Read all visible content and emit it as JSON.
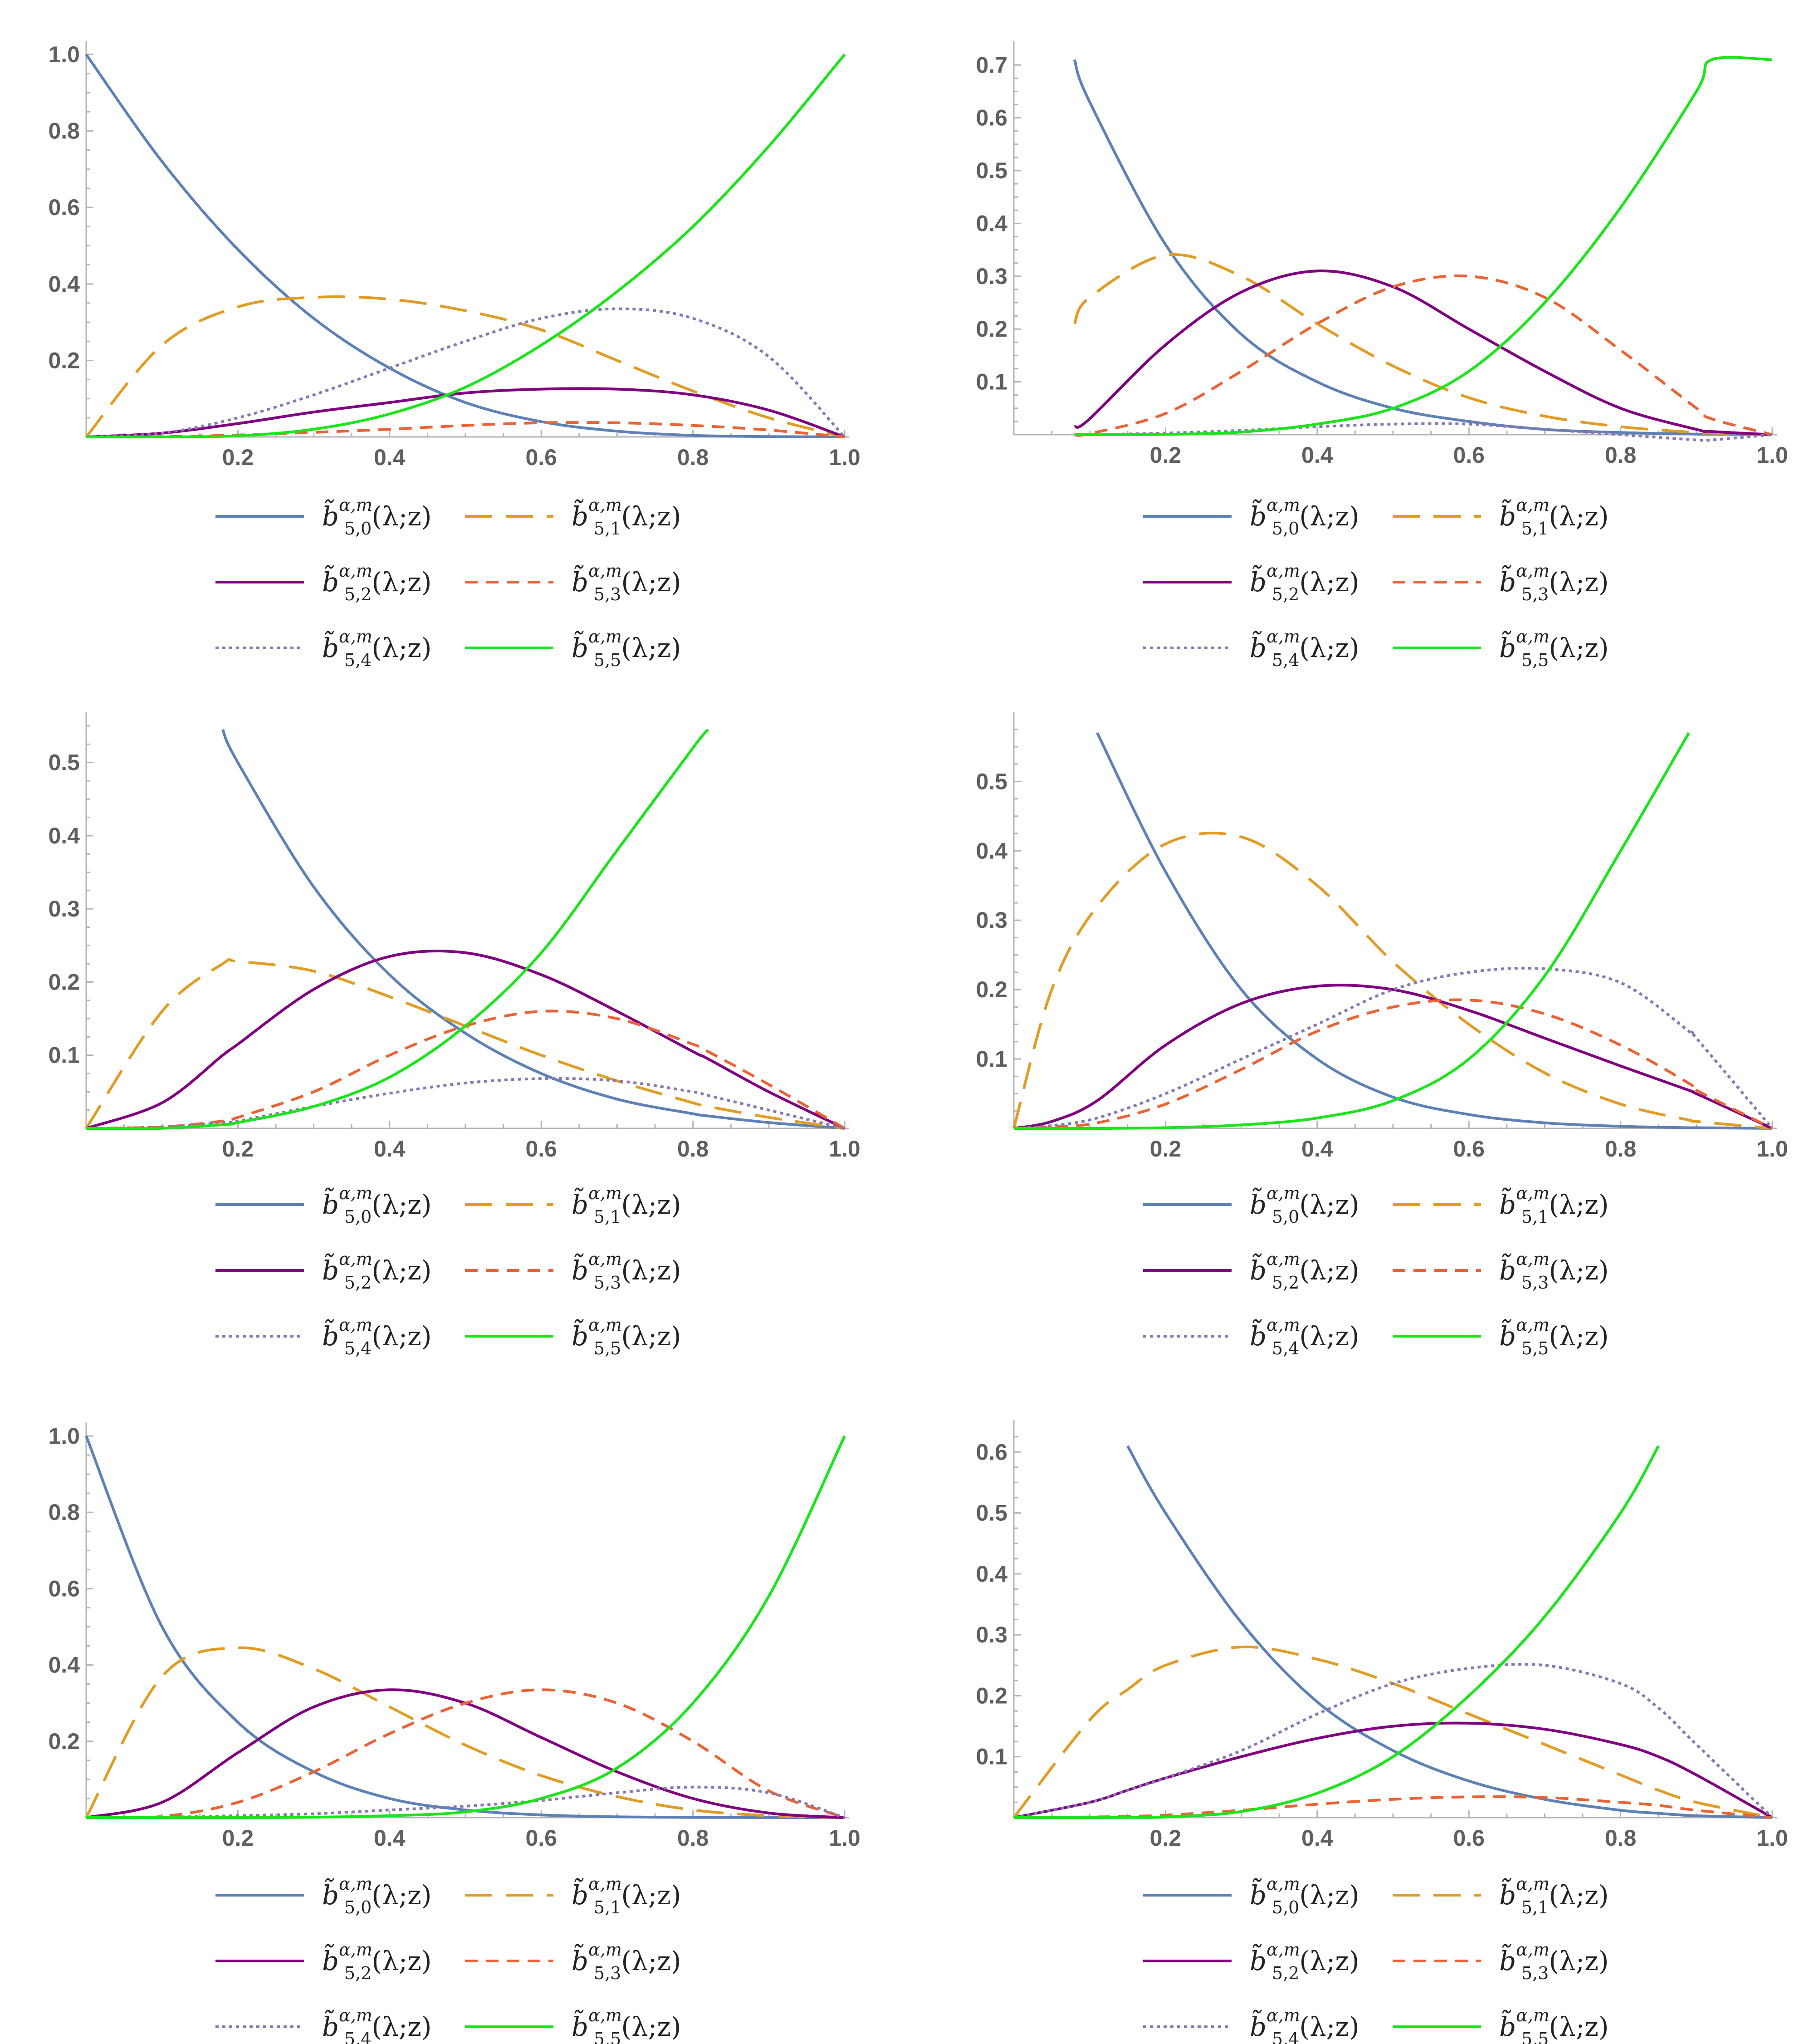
{
  "figure": {
    "panel_count": 6
  },
  "legend": [
    {
      "key": "b50",
      "label_base": "b̃",
      "sub": "5,0",
      "sup": "α,m",
      "args": "(λ;z)",
      "color": "#5e81b5",
      "dash": "solid"
    },
    {
      "key": "b51",
      "label_base": "b̃",
      "sub": "5,1",
      "sup": "α,m",
      "args": "(λ;z)",
      "color": "#e19c24",
      "dash": "long"
    },
    {
      "key": "b52",
      "label_base": "b̃",
      "sub": "5,2",
      "sup": "α,m",
      "args": "(λ;z)",
      "color": "#800080",
      "dash": "solid"
    },
    {
      "key": "b53",
      "label_base": "b̃",
      "sub": "5,3",
      "sup": "α,m",
      "args": "(λ;z)",
      "color": "#eb6235",
      "dash": "medium"
    },
    {
      "key": "b54",
      "label_base": "b̃",
      "sub": "5,4",
      "sup": "α,m",
      "args": "(λ;z)",
      "color": "#8778b3",
      "dash": "dotted"
    },
    {
      "key": "b55",
      "label_base": "b̃",
      "sub": "5,5",
      "sup": "α,m",
      "args": "(λ;z)",
      "color": "#1ae51a",
      "dash": "solid"
    }
  ],
  "chart_data": [
    {
      "type": "line",
      "xlim": [
        0,
        1
      ],
      "ylim": [
        0,
        1.0
      ],
      "xticks": [
        "0.2",
        "0.4",
        "0.6",
        "0.8",
        "1.0"
      ],
      "yticks": [
        "0.2",
        "0.4",
        "0.6",
        "0.8",
        "1.0"
      ],
      "x": [
        0,
        0.1,
        0.2,
        0.3,
        0.4,
        0.5,
        0.6,
        0.7,
        0.8,
        0.9,
        1.0
      ],
      "series": [
        {
          "name": "b50",
          "values": [
            1.0,
            0.72,
            0.49,
            0.31,
            0.18,
            0.09,
            0.04,
            0.015,
            0.004,
            0.001,
            0
          ]
        },
        {
          "name": "b51",
          "values": [
            0,
            0.24,
            0.34,
            0.365,
            0.36,
            0.33,
            0.28,
            0.2,
            0.12,
            0.05,
            0
          ]
        },
        {
          "name": "b52",
          "values": [
            0,
            0.01,
            0.035,
            0.065,
            0.09,
            0.115,
            0.125,
            0.125,
            0.11,
            0.07,
            0
          ]
        },
        {
          "name": "b53",
          "values": [
            0,
            0.001,
            0.005,
            0.012,
            0.02,
            0.03,
            0.037,
            0.037,
            0.03,
            0.018,
            0
          ]
        },
        {
          "name": "b54",
          "values": [
            0,
            0.01,
            0.05,
            0.11,
            0.18,
            0.25,
            0.31,
            0.335,
            0.31,
            0.21,
            0
          ]
        },
        {
          "name": "b55",
          "values": [
            0,
            0.0001,
            0.003,
            0.02,
            0.06,
            0.13,
            0.24,
            0.38,
            0.55,
            0.76,
            1.0
          ]
        }
      ]
    },
    {
      "type": "line",
      "xlim": [
        0,
        1
      ],
      "ylim": [
        0,
        0.72
      ],
      "xticks": [
        "0.2",
        "0.4",
        "0.6",
        "0.8",
        "1.0"
      ],
      "yticks": [
        "0.1",
        "0.2",
        "0.3",
        "0.4",
        "0.5",
        "0.6",
        "0.7"
      ],
      "x": [
        0.08,
        0.1,
        0.2,
        0.3,
        0.4,
        0.5,
        0.6,
        0.7,
        0.8,
        0.9,
        0.92,
        1.0
      ],
      "series": [
        {
          "name": "b50",
          "values": [
            0.71,
            0.63,
            0.36,
            0.19,
            0.1,
            0.05,
            0.025,
            0.01,
            0.004,
            0.001,
            0.0008,
            0
          ]
        },
        {
          "name": "b51",
          "values": [
            0.21,
            0.26,
            0.34,
            0.3,
            0.21,
            0.13,
            0.07,
            0.035,
            0.015,
            0.004,
            0.003,
            0
          ]
        },
        {
          "name": "b52",
          "values": [
            0.015,
            0.03,
            0.17,
            0.27,
            0.31,
            0.28,
            0.2,
            0.12,
            0.05,
            0.01,
            0.006,
            0
          ]
        },
        {
          "name": "b53",
          "values": [
            0.0,
            0.002,
            0.04,
            0.12,
            0.21,
            0.28,
            0.3,
            0.26,
            0.16,
            0.05,
            0.03,
            0
          ]
        },
        {
          "name": "b54",
          "values": [
            0.0,
            0.0,
            0.003,
            0.008,
            0.015,
            0.02,
            0.02,
            0.01,
            0.0,
            -0.01,
            -0.01,
            0
          ]
        },
        {
          "name": "b55",
          "values": [
            0.0,
            0.0,
            0.0005,
            0.005,
            0.02,
            0.05,
            0.12,
            0.25,
            0.43,
            0.65,
            0.71,
            0.71
          ]
        }
      ]
    },
    {
      "type": "line",
      "xlim": [
        0,
        1
      ],
      "ylim": [
        0,
        0.55
      ],
      "xticks": [
        "0.2",
        "0.4",
        "0.6",
        "0.8",
        "1.0"
      ],
      "yticks": [
        "0.1",
        "0.2",
        "0.3",
        "0.4",
        "0.5"
      ],
      "x": [
        0,
        0.1,
        0.18,
        0.2,
        0.3,
        0.4,
        0.5,
        0.6,
        0.7,
        0.8,
        0.82,
        0.9,
        1.0
      ],
      "series": [
        {
          "name": "b50",
          "values": [
            null,
            null,
            0.545,
            0.5,
            0.33,
            0.21,
            0.13,
            0.075,
            0.04,
            0.02,
            0.017,
            0.008,
            0
          ]
        },
        {
          "name": "b51",
          "values": [
            0,
            0.16,
            0.225,
            0.228,
            0.215,
            0.18,
            0.14,
            0.1,
            0.065,
            0.035,
            0.03,
            0.015,
            0
          ]
        },
        {
          "name": "b52",
          "values": [
            0,
            0.035,
            0.1,
            0.115,
            0.19,
            0.235,
            0.24,
            0.21,
            0.16,
            0.105,
            0.095,
            0.05,
            0
          ]
        },
        {
          "name": "b53",
          "values": [
            0,
            0.002,
            0.01,
            0.015,
            0.05,
            0.1,
            0.14,
            0.16,
            0.15,
            0.115,
            0.105,
            0.06,
            0
          ]
        },
        {
          "name": "b54",
          "values": [
            0,
            0.002,
            0.008,
            0.01,
            0.03,
            0.048,
            0.062,
            0.068,
            0.065,
            0.05,
            0.045,
            0.025,
            0
          ]
        },
        {
          "name": "b55",
          "values": [
            0,
            0.0002,
            0.005,
            0.008,
            0.03,
            0.07,
            0.14,
            0.24,
            0.38,
            0.52,
            0.545,
            null,
            null
          ]
        }
      ]
    },
    {
      "type": "line",
      "xlim": [
        0,
        1
      ],
      "ylim": [
        0,
        0.58
      ],
      "xticks": [
        "0.2",
        "0.4",
        "0.6",
        "0.8",
        "1.0"
      ],
      "yticks": [
        "0.1",
        "0.2",
        "0.3",
        "0.4",
        "0.5"
      ],
      "x": [
        0,
        0.05,
        0.11,
        0.2,
        0.3,
        0.4,
        0.5,
        0.6,
        0.7,
        0.8,
        0.89,
        0.9,
        1.0
      ],
      "series": [
        {
          "name": "b50",
          "values": [
            null,
            null,
            0.57,
            0.37,
            0.2,
            0.1,
            0.045,
            0.02,
            0.008,
            0.003,
            0.001,
            0.001,
            0
          ]
        },
        {
          "name": "b51",
          "values": [
            0,
            0.2,
            0.32,
            0.41,
            0.42,
            0.35,
            0.24,
            0.15,
            0.08,
            0.035,
            0.012,
            0.01,
            0
          ]
        },
        {
          "name": "b52",
          "values": [
            0,
            0.01,
            0.04,
            0.12,
            0.18,
            0.205,
            0.2,
            0.17,
            0.13,
            0.09,
            0.055,
            0.05,
            0
          ]
        },
        {
          "name": "b53",
          "values": [
            0,
            0.002,
            0.008,
            0.035,
            0.085,
            0.14,
            0.175,
            0.185,
            0.165,
            0.12,
            0.065,
            0.055,
            0
          ]
        },
        {
          "name": "b54",
          "values": [
            0,
            0.004,
            0.015,
            0.05,
            0.1,
            0.15,
            0.2,
            0.225,
            0.23,
            0.21,
            0.14,
            0.13,
            0
          ]
        },
        {
          "name": "b55",
          "values": [
            0,
            0.0,
            0.0,
            0.001,
            0.005,
            0.015,
            0.04,
            0.1,
            0.22,
            0.4,
            0.57,
            null,
            null
          ]
        }
      ]
    },
    {
      "type": "line",
      "xlim": [
        0,
        1
      ],
      "ylim": [
        0,
        1.0
      ],
      "xticks": [
        "0.2",
        "0.4",
        "0.6",
        "0.8",
        "1.0"
      ],
      "yticks": [
        "0.2",
        "0.4",
        "0.6",
        "0.8",
        "1.0"
      ],
      "x": [
        0,
        0.1,
        0.2,
        0.3,
        0.4,
        0.5,
        0.6,
        0.7,
        0.8,
        0.9,
        1.0
      ],
      "series": [
        {
          "name": "b50",
          "values": [
            1.0,
            0.5,
            0.25,
            0.12,
            0.05,
            0.02,
            0.007,
            0.002,
            0.0005,
            0.0001,
            0
          ]
        },
        {
          "name": "b51",
          "values": [
            0,
            0.37,
            0.445,
            0.39,
            0.29,
            0.19,
            0.11,
            0.055,
            0.02,
            0.005,
            0
          ]
        },
        {
          "name": "b52",
          "values": [
            0,
            0.04,
            0.17,
            0.29,
            0.335,
            0.3,
            0.21,
            0.12,
            0.05,
            0.012,
            0
          ]
        },
        {
          "name": "b53",
          "values": [
            0,
            0.003,
            0.04,
            0.12,
            0.22,
            0.3,
            0.335,
            0.3,
            0.2,
            0.07,
            0
          ]
        },
        {
          "name": "b54",
          "values": [
            0,
            0.001,
            0.005,
            0.01,
            0.02,
            0.03,
            0.045,
            0.065,
            0.08,
            0.065,
            0
          ]
        },
        {
          "name": "b55",
          "values": [
            0,
            0.0,
            0.0,
            0.001,
            0.005,
            0.015,
            0.05,
            0.13,
            0.3,
            0.58,
            1.0
          ]
        }
      ]
    },
    {
      "type": "line",
      "xlim": [
        0,
        1
      ],
      "ylim": [
        0,
        0.63
      ],
      "xticks": [
        "0.2",
        "0.4",
        "0.6",
        "0.8",
        "1.0"
      ],
      "yticks": [
        "0.1",
        "0.2",
        "0.3",
        "0.4",
        "0.5",
        "0.6"
      ],
      "x": [
        0,
        0.1,
        0.15,
        0.2,
        0.3,
        0.4,
        0.5,
        0.6,
        0.7,
        0.8,
        0.85,
        0.9,
        1.0
      ],
      "series": [
        {
          "name": "b50",
          "values": [
            null,
            null,
            0.61,
            0.5,
            0.32,
            0.19,
            0.11,
            0.06,
            0.03,
            0.012,
            0.007,
            0.003,
            0
          ]
        },
        {
          "name": "b51",
          "values": [
            0,
            0.16,
            0.21,
            0.25,
            0.28,
            0.26,
            0.22,
            0.17,
            0.12,
            0.07,
            0.045,
            0.025,
            0
          ]
        },
        {
          "name": "b52",
          "values": [
            0,
            0.025,
            0.045,
            0.065,
            0.1,
            0.13,
            0.15,
            0.155,
            0.145,
            0.12,
            0.1,
            0.07,
            0
          ]
        },
        {
          "name": "b53",
          "values": [
            0,
            0.001,
            0.002,
            0.004,
            0.012,
            0.022,
            0.03,
            0.034,
            0.033,
            0.025,
            0.02,
            0.012,
            0
          ]
        },
        {
          "name": "b54",
          "values": [
            0,
            0.025,
            0.045,
            0.065,
            0.11,
            0.17,
            0.22,
            0.245,
            0.25,
            0.22,
            0.18,
            0.12,
            0
          ]
        },
        {
          "name": "b55",
          "values": [
            0,
            0.0,
            0.0002,
            0.001,
            0.01,
            0.04,
            0.1,
            0.2,
            0.33,
            0.5,
            0.61,
            null,
            null
          ]
        }
      ]
    }
  ]
}
